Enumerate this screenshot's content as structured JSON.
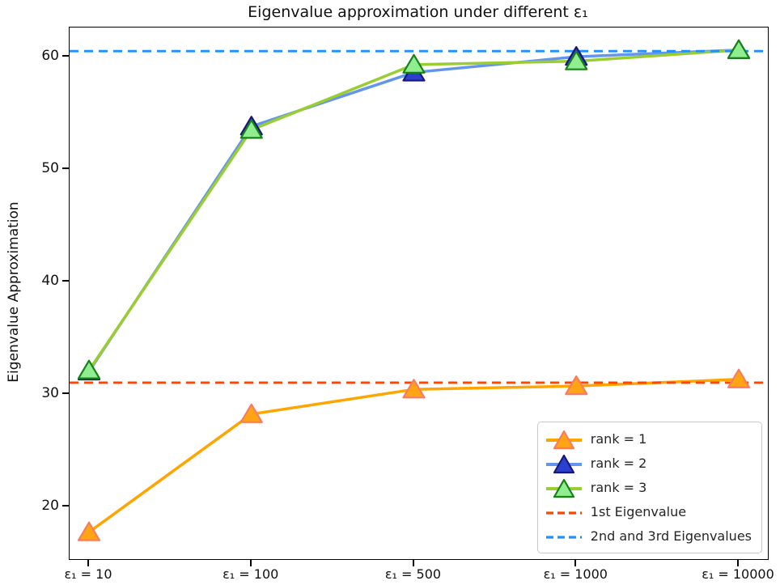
{
  "figure": {
    "title": "Eigenvalue approximation under different ε₁",
    "ylabel": "Eigenvalue Approximation"
  },
  "chart_data": {
    "type": "line",
    "title": "Eigenvalue approximation under different ε₁",
    "xlabel": "",
    "ylabel": "Eigenvalue Approximation",
    "x_type": "categorical",
    "categories": [
      "ε₁ = 10",
      "ε₁ = 100",
      "ε₁ = 500",
      "ε₁ = 1000",
      "ε₁ = 10000"
    ],
    "y_ticks": [
      20,
      30,
      40,
      50,
      60
    ],
    "ylim": [
      15.3,
      62.6
    ],
    "grid": false,
    "legend_position": "lower right",
    "series": [
      {
        "name": "rank = 1",
        "values": [
          17.7,
          28.2,
          30.4,
          30.7,
          31.3
        ],
        "line_color": "#FFA500",
        "marker": "triangle-up",
        "marker_fill": "#FFA412",
        "marker_edge": "#F97C62"
      },
      {
        "name": "rank = 2",
        "values": [
          32.0,
          53.8,
          58.6,
          60.0,
          60.6
        ],
        "line_color": "#6495ED",
        "marker": "triangle-up",
        "marker_fill": "#2C40CF",
        "marker_edge": "#181879"
      },
      {
        "name": "rank = 3",
        "values": [
          32.1,
          53.5,
          59.3,
          59.6,
          60.6
        ],
        "line_color": "#9ACD32",
        "marker": "triangle-up",
        "marker_fill": "#90EE90",
        "marker_edge": "#178217"
      }
    ],
    "reference_lines": [
      {
        "name": "1st Eigenvalue",
        "value": 31.0,
        "color": "#FF4500",
        "style": "dashed"
      },
      {
        "name": "2nd and 3rd Eigenvalues",
        "value": 60.5,
        "color": "#1E90FF",
        "style": "dashed"
      }
    ]
  }
}
